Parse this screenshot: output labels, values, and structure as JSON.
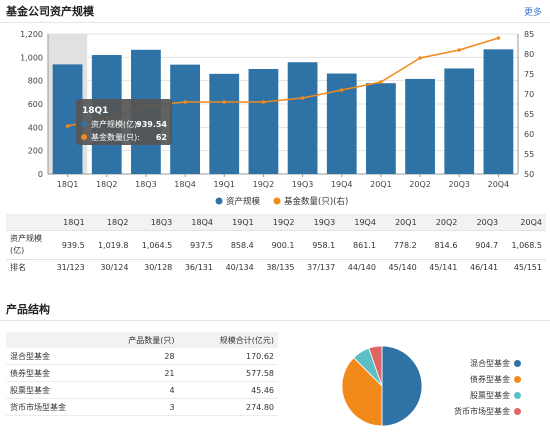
{
  "header": {
    "title": "基金公司资产规模",
    "more": "更多"
  },
  "chart_data": {
    "type": "bar+line",
    "categories": [
      "18Q1",
      "18Q2",
      "18Q3",
      "18Q4",
      "19Q1",
      "19Q2",
      "19Q3",
      "19Q4",
      "20Q1",
      "20Q2",
      "20Q3",
      "20Q4"
    ],
    "series": [
      {
        "name": "资产规模",
        "type": "bar",
        "axis": "left",
        "values": [
          939.5,
          1019.8,
          1064.5,
          937.5,
          858.4,
          900.1,
          958.1,
          861.1,
          778.2,
          814.6,
          904.7,
          1068.5
        ]
      },
      {
        "name": "基金数量(只)(右)",
        "type": "line",
        "axis": "right",
        "values": [
          62,
          64,
          67,
          68,
          68,
          68,
          69,
          71,
          73,
          79,
          81,
          84
        ]
      }
    ],
    "y_left_ticks": [
      "0",
      "200",
      "400",
      "600",
      "800",
      "1,000",
      "1,200"
    ],
    "y_left_range": [
      0,
      1200
    ],
    "y_right_ticks": [
      "50",
      "55",
      "60",
      "65",
      "70",
      "75",
      "80",
      "85"
    ],
    "y_right_range": [
      50,
      85
    ],
    "grid": true,
    "legend_position": "bottom",
    "highlight_index": 0,
    "tooltip": {
      "title": "18Q1",
      "rows": [
        {
          "label": "资产规模(亿):",
          "value": "939.54"
        },
        {
          "label": "基金数量(只):",
          "value": "62"
        }
      ]
    }
  },
  "colors": {
    "bar": "#2e72a6",
    "line": "#f2891b",
    "tooltip_bg": "#555555",
    "highlight": "#d9d9d9"
  },
  "stats": {
    "quarters": [
      "18Q1",
      "18Q2",
      "18Q3",
      "18Q4",
      "19Q1",
      "19Q2",
      "19Q3",
      "19Q4",
      "20Q1",
      "20Q2",
      "20Q3",
      "20Q4"
    ],
    "scale_label": "资产规模(亿)",
    "scale_values": [
      "939.5",
      "1,019.8",
      "1,064.5",
      "937.5",
      "858.4",
      "900.1",
      "958.1",
      "861.1",
      "778.2",
      "814.6",
      "904.7",
      "1,068.5"
    ],
    "rank_label": "排名",
    "rank_values": [
      "31/123",
      "30/124",
      "30/128",
      "36/131",
      "40/134",
      "38/135",
      "37/137",
      "44/140",
      "45/140",
      "45/141",
      "46/141",
      "45/151"
    ]
  },
  "products": {
    "title": "产品结构",
    "headers": [
      "",
      "产品数量(只)",
      "规模合计(亿元)"
    ],
    "rows": [
      {
        "name": "混合型基金",
        "count": "28",
        "size": "170.62"
      },
      {
        "name": "债券型基金",
        "count": "21",
        "size": "577.58"
      },
      {
        "name": "股票型基金",
        "count": "4",
        "size": "45.46"
      },
      {
        "name": "货币市场型基金",
        "count": "3",
        "size": "274.80"
      }
    ],
    "pie_values": [
      28,
      21,
      4,
      3
    ],
    "pie_colors": [
      "#2e72a6",
      "#f2891b",
      "#5bbfc4",
      "#e06666"
    ]
  }
}
